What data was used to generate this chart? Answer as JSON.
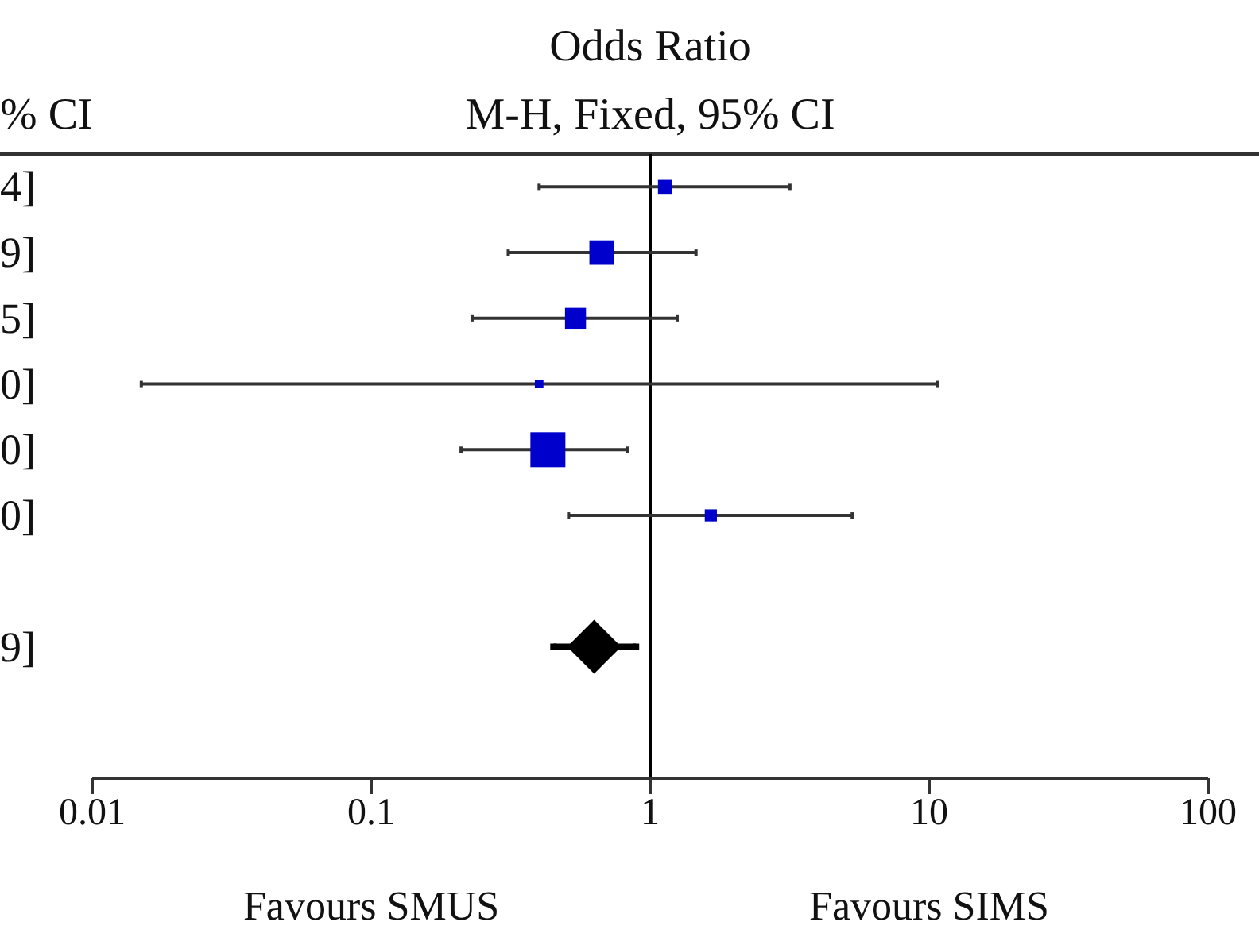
{
  "chart_data": {
    "type": "bubble",
    "orientation": "horizontal",
    "title": "Odds Ratio",
    "subtitle": "M-H, Fixed, 95% CI",
    "categories": [
      "4]",
      "9]",
      "5]",
      "0]",
      "0]",
      "0]",
      null,
      "9]"
    ],
    "series": [
      {
        "color": "#0000cc",
        "marker": "square",
        "values": [
          1.13,
          0.67,
          0.54,
          0.4,
          0.43,
          1.65,
          null,
          null
        ],
        "sizes": [
          0.16,
          0.49,
          0.36,
          0.06,
          1,
          0.12,
          null,
          null
        ],
        "errors": [
          [
            0.4,
            3.17
          ],
          [
            0.31,
            1.46
          ],
          [
            0.23,
            1.25
          ],
          [
            0.015,
            10.7
          ],
          [
            0.21,
            0.83
          ],
          [
            0.51,
            5.3
          ],
          null,
          null
        ]
      },
      {
        "type": "scatter",
        "marker": "diamond",
        "color": "#000000",
        "values": [
          null,
          null,
          null,
          null,
          null,
          null,
          null,
          0.63
        ],
        "errors": [
          null,
          null,
          null,
          null,
          null,
          null,
          null,
          [
            0.45,
            0.89
          ]
        ]
      }
    ],
    "xlim": [
      0.01,
      100
    ],
    "xticks": [
      0.01,
      0.1,
      1,
      10,
      100
    ],
    "log": "x",
    "ref_lines": [
      {
        "axis": "x",
        "value": 1,
        "color": "#000000"
      }
    ],
    "annotations": [
      "% CI",
      "Favours SMUS",
      "Favours SIMS"
    ]
  }
}
